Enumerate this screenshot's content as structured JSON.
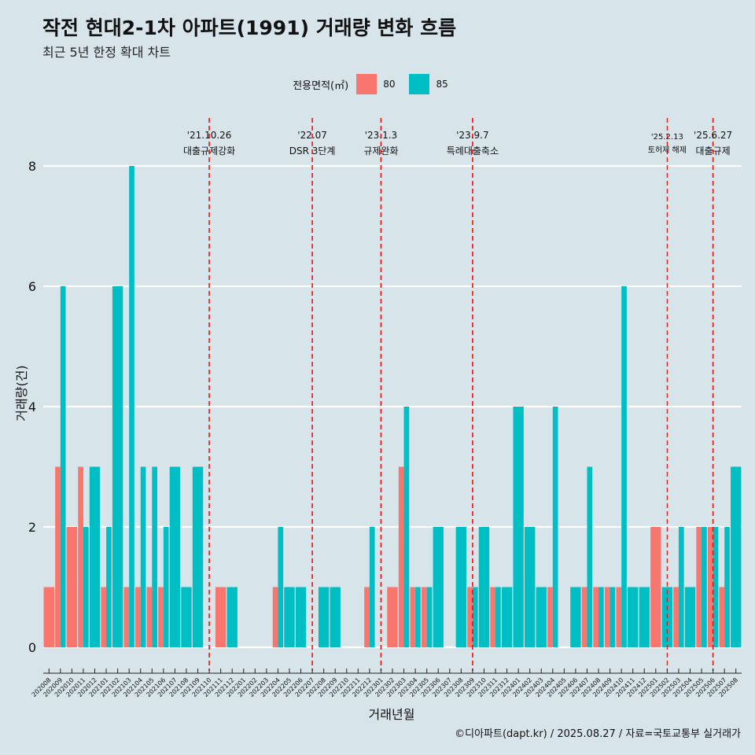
{
  "title": "작전 현대2-1차 아파트(1991) 거래량 변화 흐름",
  "subtitle": "최근 5년 한정 확대 차트",
  "footer": "©디아파트(dapt.kr) / 2025.08.27 / 자료=국토교통부 실거래가",
  "legend": {
    "title": "전용면적(㎡)",
    "items": [
      {
        "label": "80",
        "color": "#f8766d"
      },
      {
        "label": "85",
        "color": "#00bfc4"
      }
    ]
  },
  "chart_data": {
    "type": "bar",
    "xlabel": "거래년월",
    "ylabel": "거래량(건)",
    "ylim": [
      0,
      8
    ],
    "yticks": [
      0,
      2,
      4,
      6,
      8
    ],
    "categories": [
      "202008",
      "202009",
      "202010",
      "202011",
      "202012",
      "202101",
      "202102",
      "202103",
      "202104",
      "202105",
      "202106",
      "202107",
      "202108",
      "202109",
      "202110",
      "202111",
      "202112",
      "202201",
      "202202",
      "202203",
      "202204",
      "202205",
      "202206",
      "202207",
      "202208",
      "202209",
      "202210",
      "202211",
      "202212",
      "202301",
      "202302",
      "202303",
      "202304",
      "202305",
      "202306",
      "202307",
      "202308",
      "202309",
      "202310",
      "202311",
      "202312",
      "202401",
      "202402",
      "202403",
      "202404",
      "202405",
      "202406",
      "202407",
      "202408",
      "202409",
      "202410",
      "202411",
      "202412",
      "202501",
      "202502",
      "202503",
      "202504",
      "202505",
      "202506",
      "202507",
      "202508"
    ],
    "series": [
      {
        "name": "80",
        "color": "#f8766d",
        "values": [
          1,
          3,
          2,
          3,
          0,
          1,
          0,
          1,
          1,
          1,
          1,
          0,
          0,
          0,
          0,
          1,
          0,
          0,
          0,
          0,
          1,
          0,
          0,
          0,
          0,
          0,
          0,
          0,
          1,
          0,
          1,
          3,
          1,
          1,
          0,
          0,
          0,
          1,
          0,
          1,
          0,
          0,
          0,
          0,
          1,
          0,
          0,
          1,
          1,
          1,
          1,
          0,
          0,
          2,
          0,
          1,
          0,
          2,
          2,
          1,
          0
        ]
      },
      {
        "name": "85",
        "color": "#00bfc4",
        "values": [
          0,
          6,
          0,
          2,
          3,
          2,
          6,
          8,
          3,
          3,
          2,
          3,
          1,
          3,
          0,
          0,
          1,
          0,
          0,
          0,
          2,
          1,
          1,
          0,
          1,
          1,
          0,
          0,
          2,
          0,
          0,
          4,
          1,
          1,
          2,
          0,
          2,
          1,
          2,
          1,
          1,
          4,
          2,
          1,
          4,
          0,
          1,
          3,
          1,
          1,
          6,
          1,
          1,
          0,
          1,
          2,
          1,
          2,
          2,
          2,
          3
        ]
      }
    ],
    "events": [
      {
        "date": "'21.10.26",
        "label": "대출규제강화",
        "month": "202110"
      },
      {
        "date": "'22.07",
        "label": "DSR 3단계",
        "month": "202207"
      },
      {
        "date": "'23.1.3",
        "label": "규제완화",
        "month": "202301"
      },
      {
        "date": "'23.9.7",
        "label": "특례대출축소",
        "month": "202309"
      },
      {
        "date": "'25.2.13",
        "label": "토허제 해제",
        "month": "202502"
      },
      {
        "date": "'25.6.27",
        "label": "대출규제",
        "month": "202506"
      }
    ]
  }
}
